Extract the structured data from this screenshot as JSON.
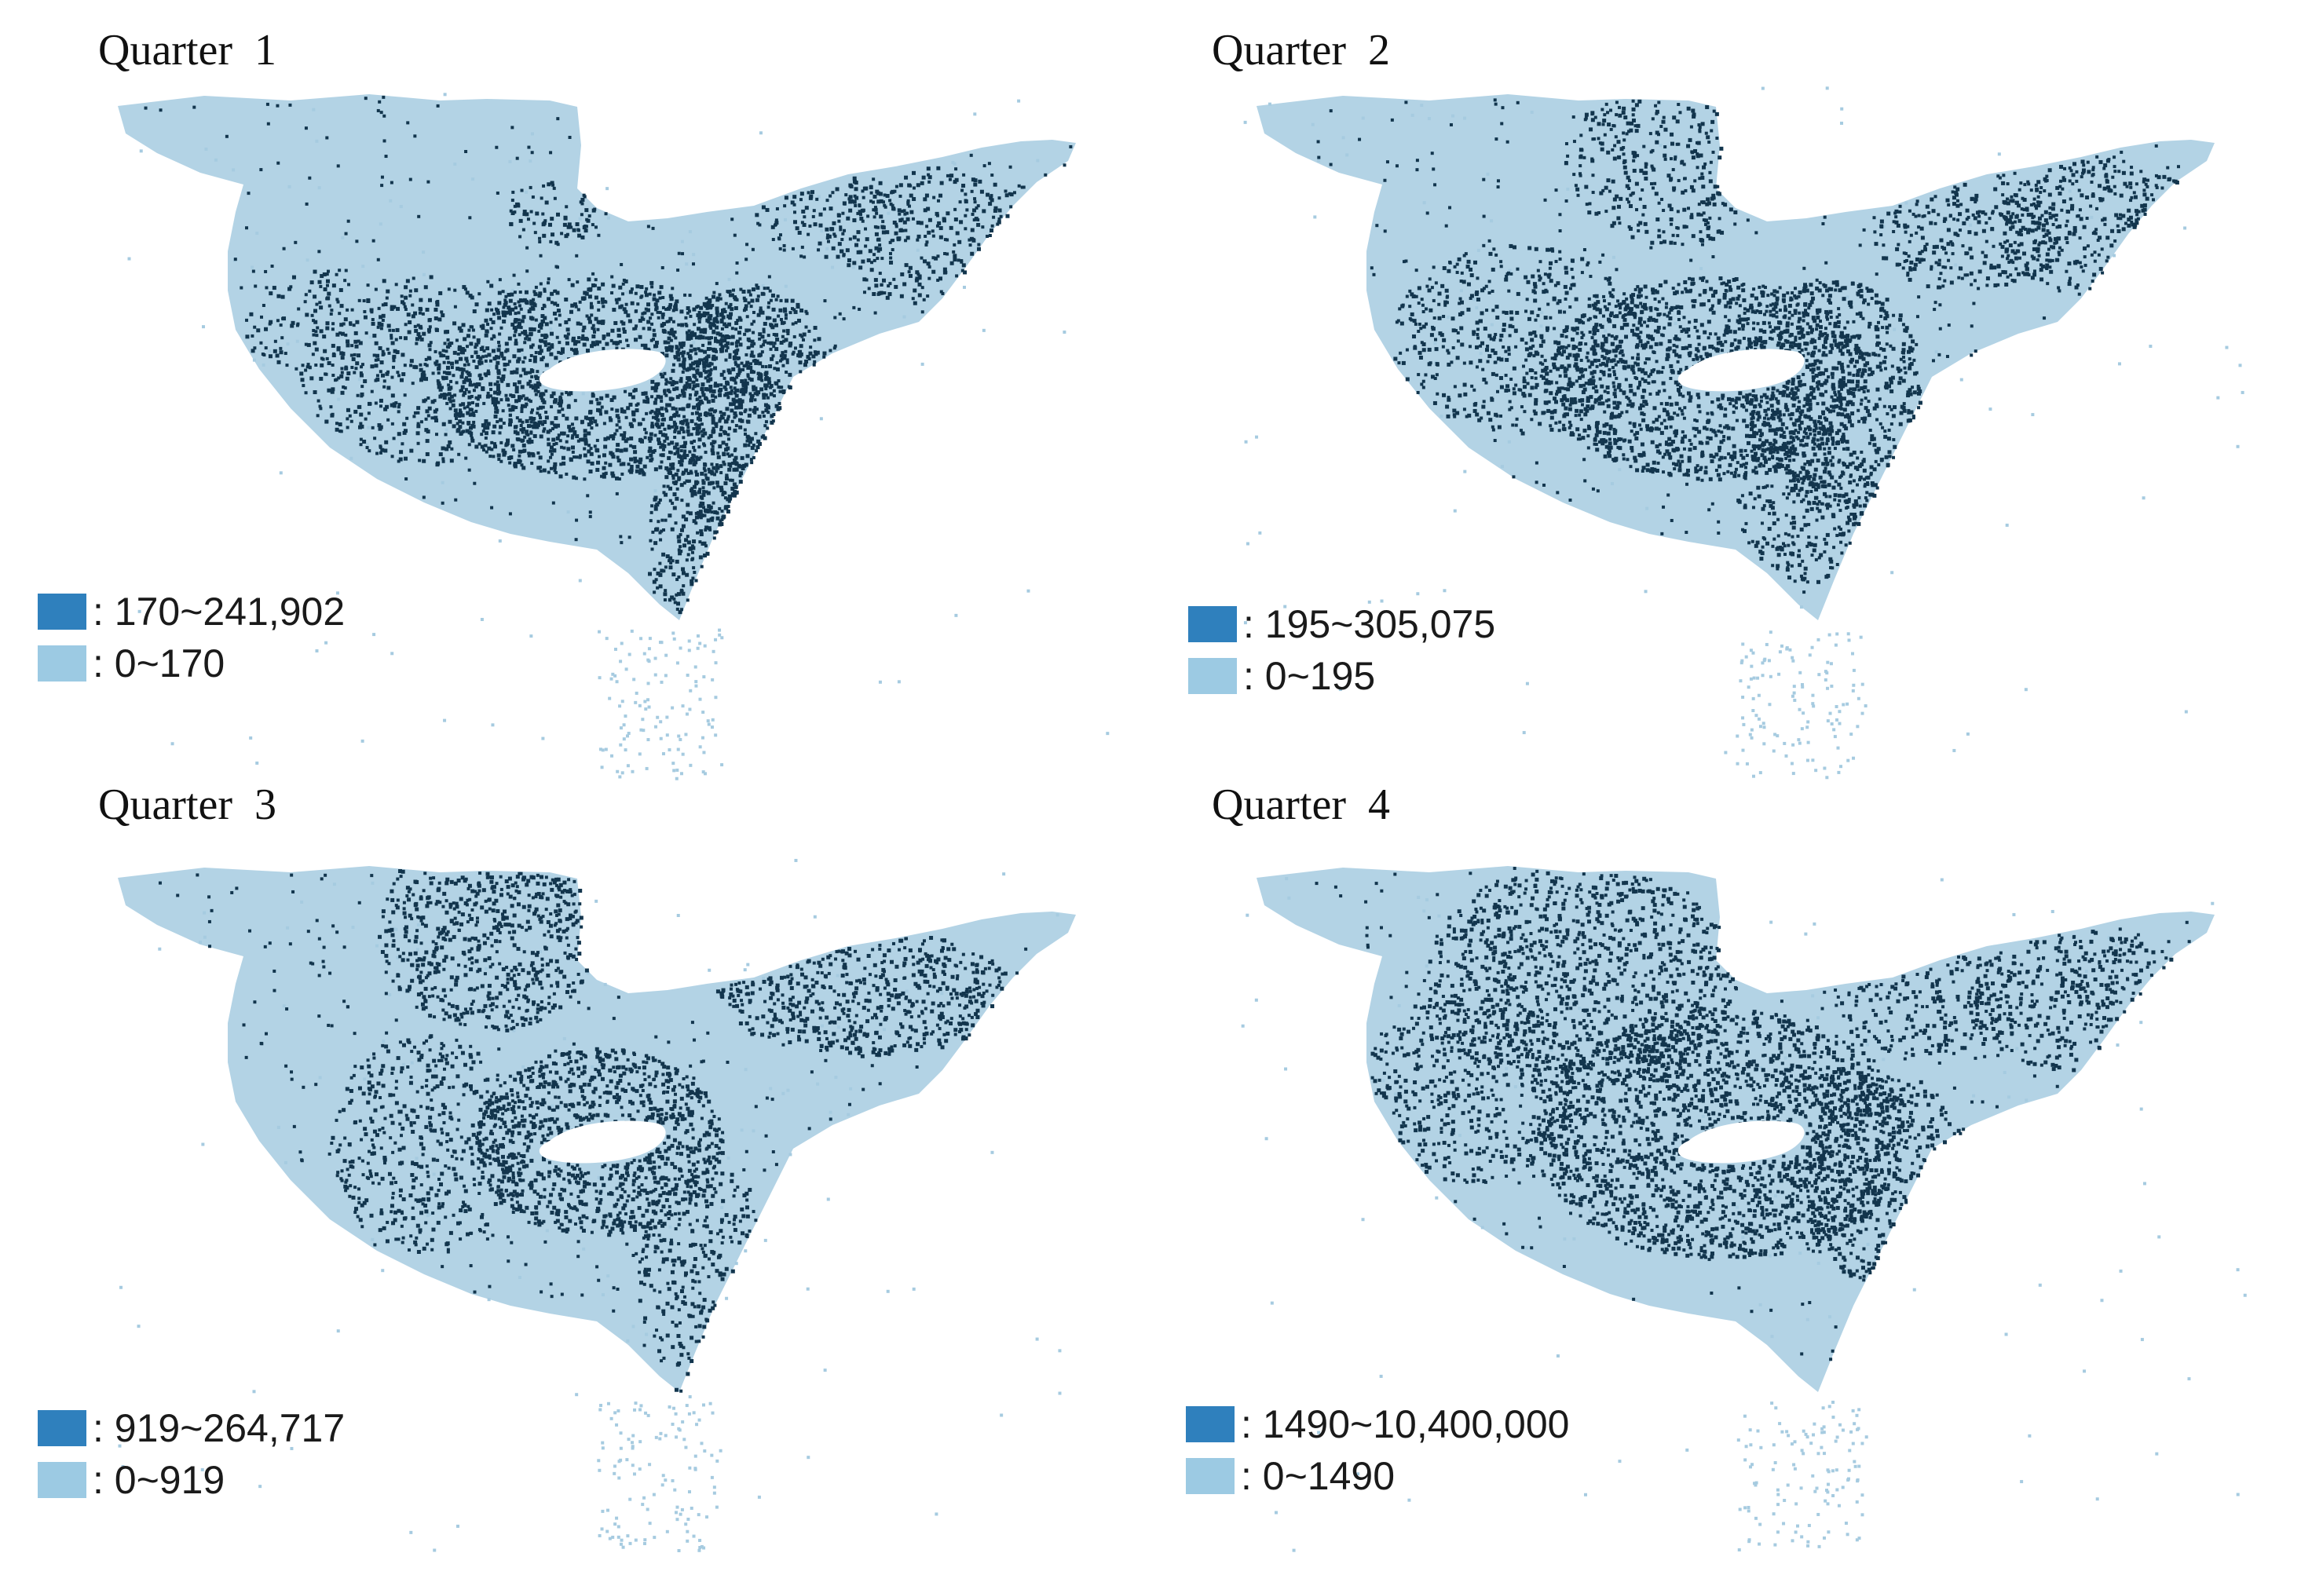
{
  "colors": {
    "high_fill": "#12354d",
    "low_fill": "#a6cbe0",
    "legend_high": "#2f80bd",
    "legend_low": "#9ccae3"
  },
  "panels": [
    {
      "title": "Quarter  1",
      "legend": [
        {
          "label": ": 170~241,902",
          "class": "high"
        },
        {
          "label": ": 0~170",
          "class": "low"
        }
      ]
    },
    {
      "title": "Quarter  2",
      "legend": [
        {
          "label": ": 195~305,075",
          "class": "high"
        },
        {
          "label": ": 0~195",
          "class": "low"
        }
      ]
    },
    {
      "title": "Quarter  3",
      "legend": [
        {
          "label": ": 919~264,717",
          "class": "high"
        },
        {
          "label": ": 0~919",
          "class": "low"
        }
      ]
    },
    {
      "title": "Quarter  4",
      "legend": [
        {
          "label": ": 1490~10,400,000",
          "class": "high"
        },
        {
          "label": ": 0~1490",
          "class": "low"
        }
      ]
    }
  ]
}
